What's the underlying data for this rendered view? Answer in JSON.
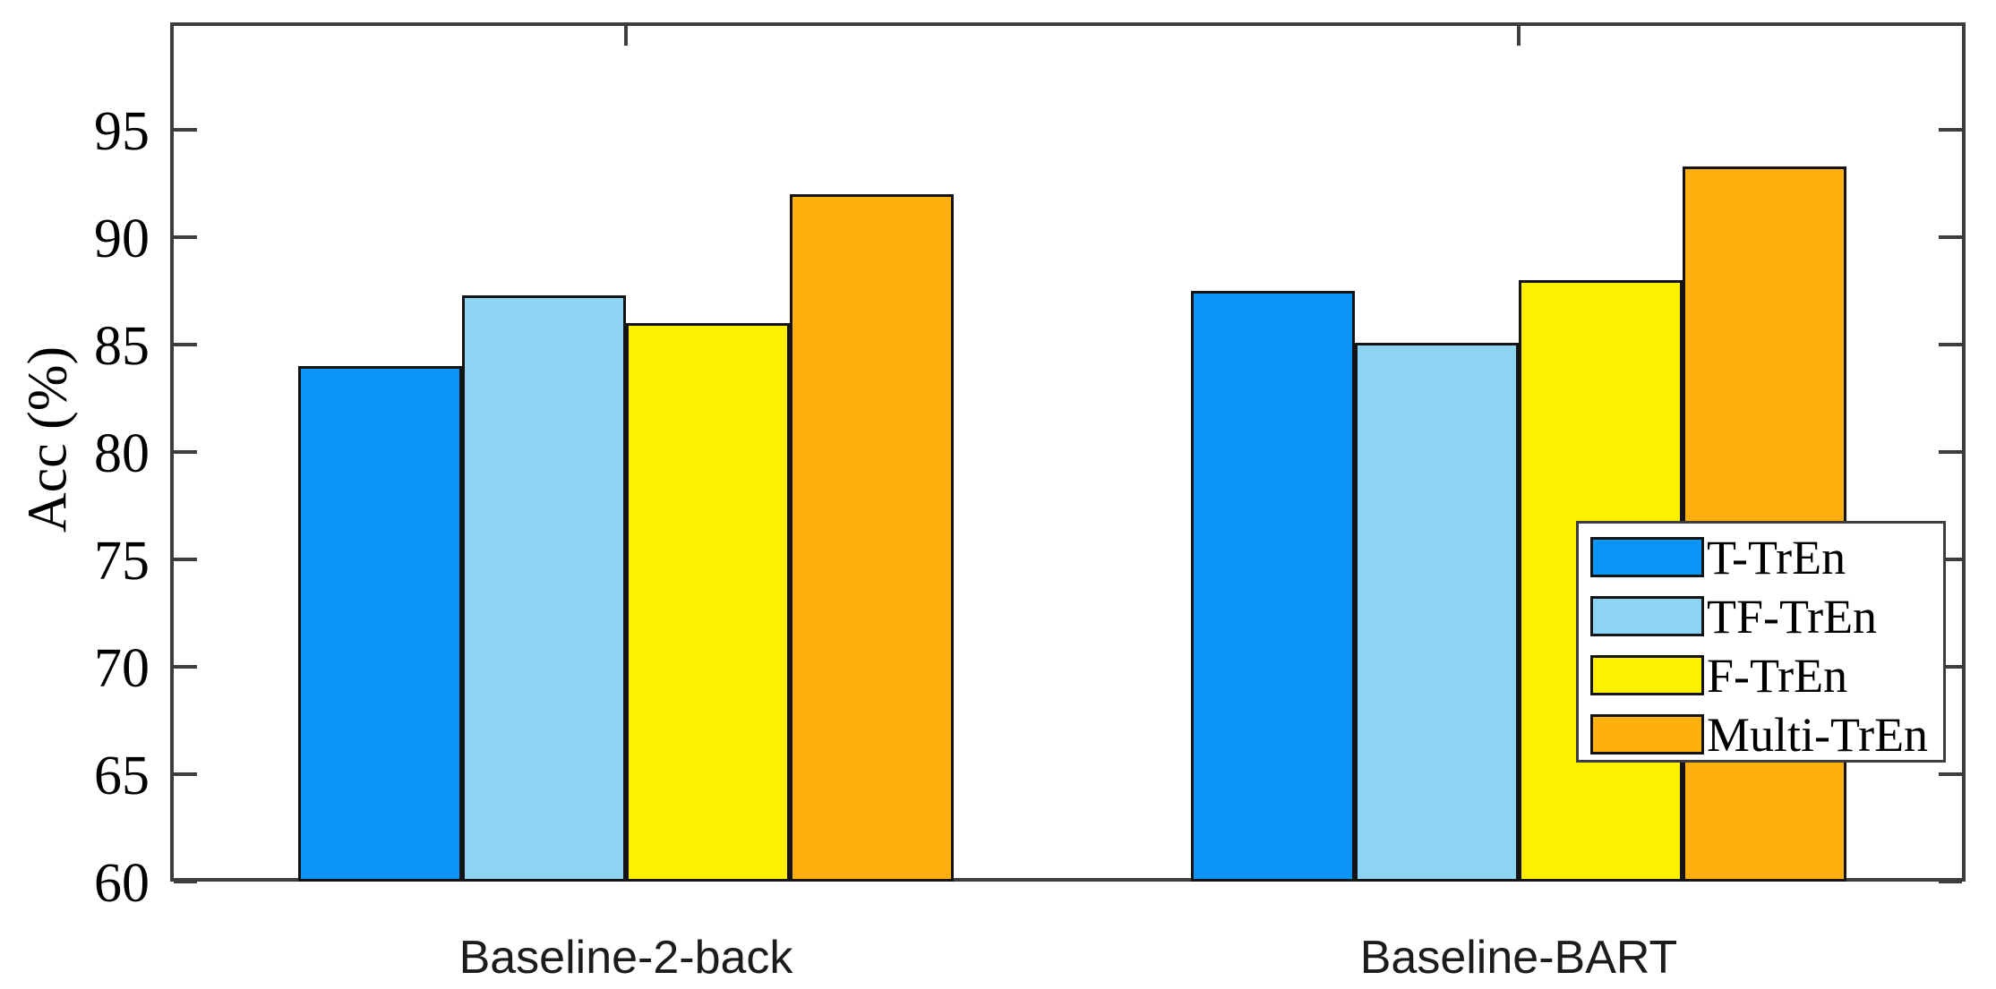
{
  "chart_data": {
    "type": "bar",
    "title": "",
    "xlabel": "",
    "ylabel": "Acc (%)",
    "ylim": [
      60,
      100
    ],
    "yticks": [
      60,
      65,
      70,
      75,
      80,
      85,
      90,
      95
    ],
    "categories": [
      "Baseline-2-back",
      "Baseline-BART"
    ],
    "series": [
      {
        "name": "T-TrEn",
        "color": "#0995F8",
        "values": [
          84.0,
          87.5
        ]
      },
      {
        "name": "TF-TrEn",
        "color": "#8DD3F4",
        "values": [
          87.3,
          85.1
        ]
      },
      {
        "name": "F-TrEn",
        "color": "#FDF000",
        "values": [
          86.0,
          88.0
        ]
      },
      {
        "name": "Multi-TrEn",
        "color": "#FDB00D",
        "values": [
          92.0,
          93.3
        ]
      }
    ],
    "legend": {
      "position": "middle-right",
      "background": "#FFFFFF",
      "border_color": "#3D3D3D"
    },
    "grid": false,
    "bar_edge_color": "#141414",
    "axis_color": "#3D3D3D",
    "tick_direction": "in",
    "box": true
  }
}
